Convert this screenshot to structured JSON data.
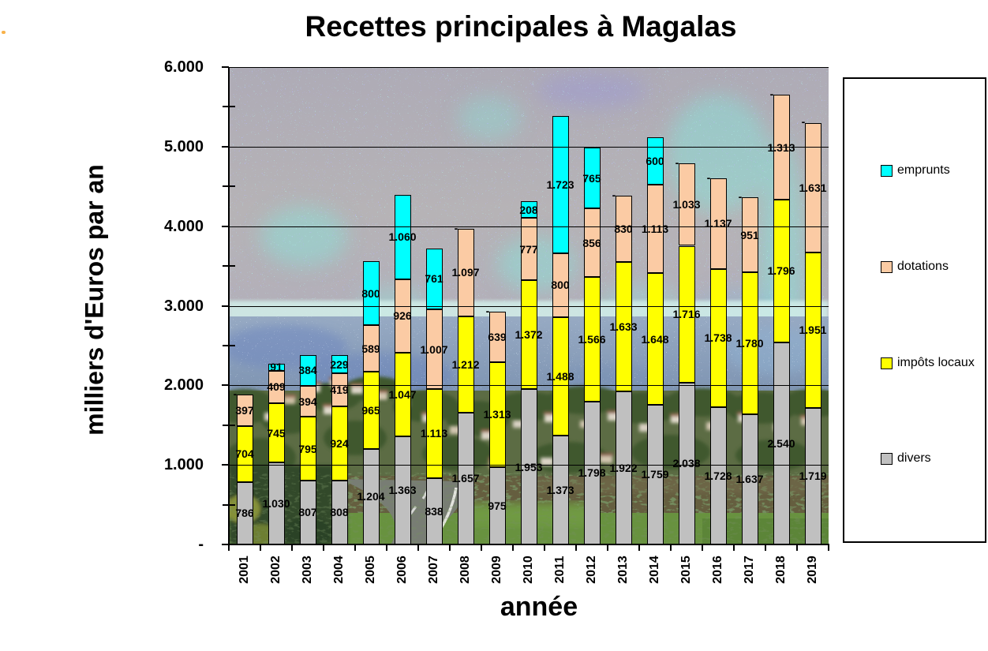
{
  "chart_data": {
    "type": "bar",
    "stacked": true,
    "title": "Recettes principales à Magalas",
    "xlabel": "année",
    "ylabel": "milliers d'Euros par an",
    "ylim": [
      0,
      6000
    ],
    "y_major_step": 1000,
    "y_minor_step": 500,
    "y_tick_labels": [
      "-",
      "1.000",
      "2.000",
      "3.000",
      "4.000",
      "5.000",
      "6.000"
    ],
    "zero_label": "-",
    "grid": "horizontal major gridlines drawn over bars",
    "background": "photo of Magalas village landscape (sky, hilltop village, fields, road)",
    "categories": [
      "2001",
      "2002",
      "2003",
      "2004",
      "2005",
      "2006",
      "2007",
      "2008",
      "2009",
      "2010",
      "2011",
      "2012",
      "2013",
      "2014",
      "2015",
      "2016",
      "2017",
      "2018",
      "2019"
    ],
    "series": [
      {
        "name": "divers",
        "color": "#C0C0C0",
        "values": [
          786,
          1030,
          807,
          808,
          1204,
          1363,
          838,
          1657,
          975,
          1953,
          1373,
          1798,
          1922,
          1759,
          2038,
          1728,
          1637,
          2540,
          1719
        ]
      },
      {
        "name": "impôts locaux",
        "color": "#FFFF00",
        "values": [
          704,
          745,
          795,
          924,
          965,
          1047,
          1113,
          1212,
          1313,
          1372,
          1488,
          1566,
          1633,
          1648,
          1716,
          1738,
          1780,
          1796,
          1951
        ]
      },
      {
        "name": "dotations",
        "color": "#FBCBA4",
        "values": [
          397,
          409,
          394,
          419,
          589,
          926,
          1007,
          1097,
          639,
          777,
          800,
          856,
          830,
          1113,
          1033,
          1137,
          951,
          1313,
          1631
        ]
      },
      {
        "name": "emprunts",
        "color": "#00FFFF",
        "values": [
          0,
          91,
          384,
          229,
          800,
          1060,
          761,
          0,
          0,
          208,
          1723,
          765,
          0,
          600,
          0,
          0,
          0,
          0,
          0
        ]
      }
    ],
    "legend": {
      "position": "right",
      "items": [
        {
          "label": "emprunts",
          "color": "#00FFFF"
        },
        {
          "label": "dotations",
          "color": "#FBCBA4"
        },
        {
          "label": "impôts locaux",
          "color": "#FFFF00"
        },
        {
          "label": "divers",
          "color": "#C0C0C0"
        }
      ]
    }
  }
}
